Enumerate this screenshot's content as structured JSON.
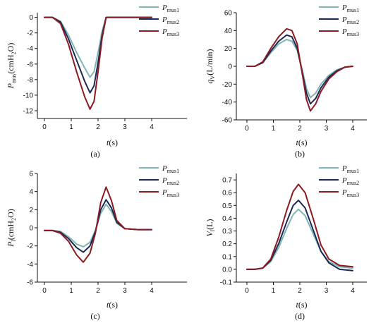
{
  "chart_data": [
    {
      "id": "a",
      "type": "line",
      "panel_label": "(a)",
      "xlabel_main": "t",
      "xlabel_unit": "(s)",
      "ylabel_main": "P",
      "ylabel_sub": "mus",
      "ylabel_unit": "(cmH",
      "ylabel_unit_sub": "2",
      "ylabel_unit_end": "O)",
      "xlim": [
        -0.5,
        4.5
      ],
      "ylim": [
        -13,
        0.6
      ],
      "xticks": [
        0,
        1,
        2,
        3,
        4
      ],
      "yticks": [
        0,
        -2,
        -4,
        -6,
        -8,
        -10,
        -12
      ],
      "legend_position": "top-right",
      "series": [
        {
          "name_main": "P",
          "name_sub": "mus1",
          "color": "#7fb6b3",
          "x": [
            0,
            0.3,
            0.6,
            0.9,
            1.2,
            1.5,
            1.7,
            1.85,
            2.0,
            2.15,
            2.3,
            2.6,
            3.0,
            3.5,
            4.0
          ],
          "y": [
            0,
            0,
            -0.5,
            -2.3,
            -4.5,
            -6.5,
            -7.7,
            -7.0,
            -4.5,
            -1.8,
            0,
            0,
            0,
            0,
            0
          ]
        },
        {
          "name_main": "P",
          "name_sub": "mus2",
          "color": "#1a2a55",
          "x": [
            0,
            0.3,
            0.6,
            0.9,
            1.2,
            1.5,
            1.7,
            1.85,
            2.0,
            2.15,
            2.3,
            2.6,
            3.0,
            3.5,
            4.0
          ],
          "y": [
            0,
            0,
            -0.6,
            -2.8,
            -5.5,
            -8.2,
            -9.7,
            -8.8,
            -5.8,
            -2.3,
            0,
            0,
            0,
            0,
            0
          ]
        },
        {
          "name_main": "P",
          "name_sub": "mus3",
          "color": "#8b1a22",
          "x": [
            0,
            0.3,
            0.6,
            0.9,
            1.2,
            1.5,
            1.7,
            1.85,
            2.0,
            2.15,
            2.3,
            2.6,
            3.0,
            3.5,
            4.0
          ],
          "y": [
            0,
            0,
            -0.8,
            -3.5,
            -7.0,
            -10.2,
            -11.8,
            -10.8,
            -7.0,
            -2.7,
            0,
            0,
            0,
            0,
            0
          ]
        }
      ]
    },
    {
      "id": "b",
      "type": "line",
      "panel_label": "(b)",
      "xlabel_main": "t",
      "xlabel_unit": "(s)",
      "ylabel_main": "q",
      "ylabel_sub": "V",
      "ylabel_unit": "(L/min)",
      "ylabel_unit_sub": "",
      "ylabel_unit_end": "",
      "xlim": [
        -0.5,
        4.5
      ],
      "ylim": [
        -60,
        60
      ],
      "xticks": [
        0,
        1,
        2,
        3,
        4
      ],
      "yticks": [
        60,
        40,
        20,
        0,
        -20,
        -40,
        -60
      ],
      "legend_position": "top-right",
      "series": [
        {
          "name_main": "P",
          "name_sub": "mus1",
          "color": "#7fb6b3",
          "x": [
            0,
            0.3,
            0.6,
            0.9,
            1.2,
            1.5,
            1.7,
            1.9,
            2.1,
            2.25,
            2.4,
            2.6,
            2.8,
            3.1,
            3.4,
            3.7,
            4.0
          ],
          "y": [
            0,
            0,
            4,
            15,
            25,
            30,
            28,
            18,
            -5,
            -25,
            -35,
            -30,
            -20,
            -10,
            -4,
            -1,
            0
          ]
        },
        {
          "name_main": "P",
          "name_sub": "mus2",
          "color": "#1a2a55",
          "x": [
            0,
            0.3,
            0.6,
            0.9,
            1.2,
            1.5,
            1.7,
            1.9,
            2.1,
            2.25,
            2.4,
            2.6,
            2.8,
            3.1,
            3.4,
            3.7,
            4.0
          ],
          "y": [
            0,
            0,
            4,
            17,
            28,
            35,
            33,
            20,
            -8,
            -30,
            -42,
            -36,
            -24,
            -12,
            -5,
            -1,
            0
          ]
        },
        {
          "name_main": "P",
          "name_sub": "mus3",
          "color": "#8b1a22",
          "x": [
            0,
            0.3,
            0.6,
            0.9,
            1.2,
            1.5,
            1.7,
            1.9,
            2.1,
            2.25,
            2.4,
            2.6,
            2.8,
            3.1,
            3.4,
            3.7,
            4.0
          ],
          "y": [
            0,
            0,
            5,
            20,
            33,
            42,
            40,
            25,
            -10,
            -37,
            -50,
            -42,
            -28,
            -14,
            -6,
            -1,
            0
          ]
        }
      ]
    },
    {
      "id": "c",
      "type": "line",
      "panel_label": "(c)",
      "xlabel_main": "t",
      "xlabel_unit": "(s)",
      "ylabel_main": "P",
      "ylabel_sub": "l",
      "ylabel_unit": "(cmH",
      "ylabel_unit_sub": "2",
      "ylabel_unit_end": "O)",
      "xlim": [
        -0.5,
        4.5
      ],
      "ylim": [
        -6,
        6
      ],
      "xticks": [
        0,
        1,
        2,
        3,
        4
      ],
      "yticks": [
        6,
        4,
        2,
        0,
        -2,
        -4,
        -6
      ],
      "legend_position": "top-right",
      "series": [
        {
          "name_main": "P",
          "name_sub": "mus1",
          "color": "#7fb6b3",
          "x": [
            0,
            0.3,
            0.6,
            0.9,
            1.2,
            1.45,
            1.7,
            1.9,
            2.1,
            2.3,
            2.5,
            2.7,
            3.0,
            3.5,
            4.0
          ],
          "y": [
            -0.3,
            -0.3,
            -0.4,
            -1.0,
            -1.8,
            -2.1,
            -1.6,
            -0.3,
            1.6,
            2.6,
            1.8,
            0.5,
            -0.1,
            -0.2,
            -0.2
          ]
        },
        {
          "name_main": "P",
          "name_sub": "mus2",
          "color": "#1a2a55",
          "x": [
            0,
            0.3,
            0.6,
            0.9,
            1.2,
            1.45,
            1.7,
            1.9,
            2.1,
            2.3,
            2.5,
            2.7,
            3.0,
            3.5,
            4.0
          ],
          "y": [
            -0.3,
            -0.3,
            -0.5,
            -1.2,
            -2.2,
            -2.7,
            -2.0,
            -0.4,
            2.0,
            3.1,
            2.2,
            0.6,
            -0.1,
            -0.2,
            -0.2
          ]
        },
        {
          "name_main": "P",
          "name_sub": "mus3",
          "color": "#8b1a22",
          "x": [
            0,
            0.3,
            0.6,
            0.9,
            1.2,
            1.45,
            1.7,
            1.9,
            2.1,
            2.3,
            2.5,
            2.7,
            3.0,
            3.5,
            4.0
          ],
          "y": [
            -0.3,
            -0.3,
            -0.6,
            -1.5,
            -3.0,
            -3.8,
            -2.8,
            -0.6,
            2.8,
            4.5,
            3.0,
            0.8,
            -0.1,
            -0.2,
            -0.2
          ]
        }
      ]
    },
    {
      "id": "d",
      "type": "line",
      "panel_label": "(d)",
      "xlabel_main": "t",
      "xlabel_unit": "(s)",
      "ylabel_main": "V",
      "ylabel_sub": "l",
      "ylabel_unit": "(L)",
      "ylabel_unit_sub": "",
      "ylabel_unit_end": "",
      "xlim": [
        -0.5,
        4.5
      ],
      "ylim": [
        -0.1,
        0.75
      ],
      "xticks": [
        0,
        1,
        2,
        3,
        4
      ],
      "yticks": [
        0.7,
        0.6,
        0.5,
        0.4,
        0.3,
        0.2,
        0.1,
        0.0,
        -0.1
      ],
      "legend_position": "top-right",
      "series": [
        {
          "name_main": "P",
          "name_sub": "mus1",
          "color": "#7fb6b3",
          "x": [
            0,
            0.3,
            0.6,
            0.9,
            1.2,
            1.5,
            1.75,
            1.95,
            2.2,
            2.5,
            2.8,
            3.1,
            3.5,
            4.0
          ],
          "y": [
            0,
            0,
            0.01,
            0.06,
            0.17,
            0.32,
            0.43,
            0.47,
            0.42,
            0.28,
            0.14,
            0.06,
            0.02,
            0.01
          ]
        },
        {
          "name_main": "P",
          "name_sub": "mus2",
          "color": "#1a2a55",
          "x": [
            0,
            0.3,
            0.6,
            0.9,
            1.2,
            1.5,
            1.75,
            1.95,
            2.2,
            2.5,
            2.8,
            3.1,
            3.5,
            4.0
          ],
          "y": [
            0,
            0,
            0.01,
            0.07,
            0.2,
            0.37,
            0.5,
            0.54,
            0.48,
            0.31,
            0.14,
            0.05,
            0.0,
            -0.01
          ]
        },
        {
          "name_main": "P",
          "name_sub": "mus3",
          "color": "#8b1a22",
          "x": [
            0,
            0.3,
            0.6,
            0.9,
            1.2,
            1.5,
            1.75,
            1.95,
            2.2,
            2.5,
            2.8,
            3.1,
            3.5,
            4.0
          ],
          "y": [
            0,
            0,
            0.01,
            0.08,
            0.25,
            0.46,
            0.61,
            0.665,
            0.6,
            0.4,
            0.19,
            0.08,
            0.03,
            0.02
          ]
        }
      ]
    }
  ]
}
